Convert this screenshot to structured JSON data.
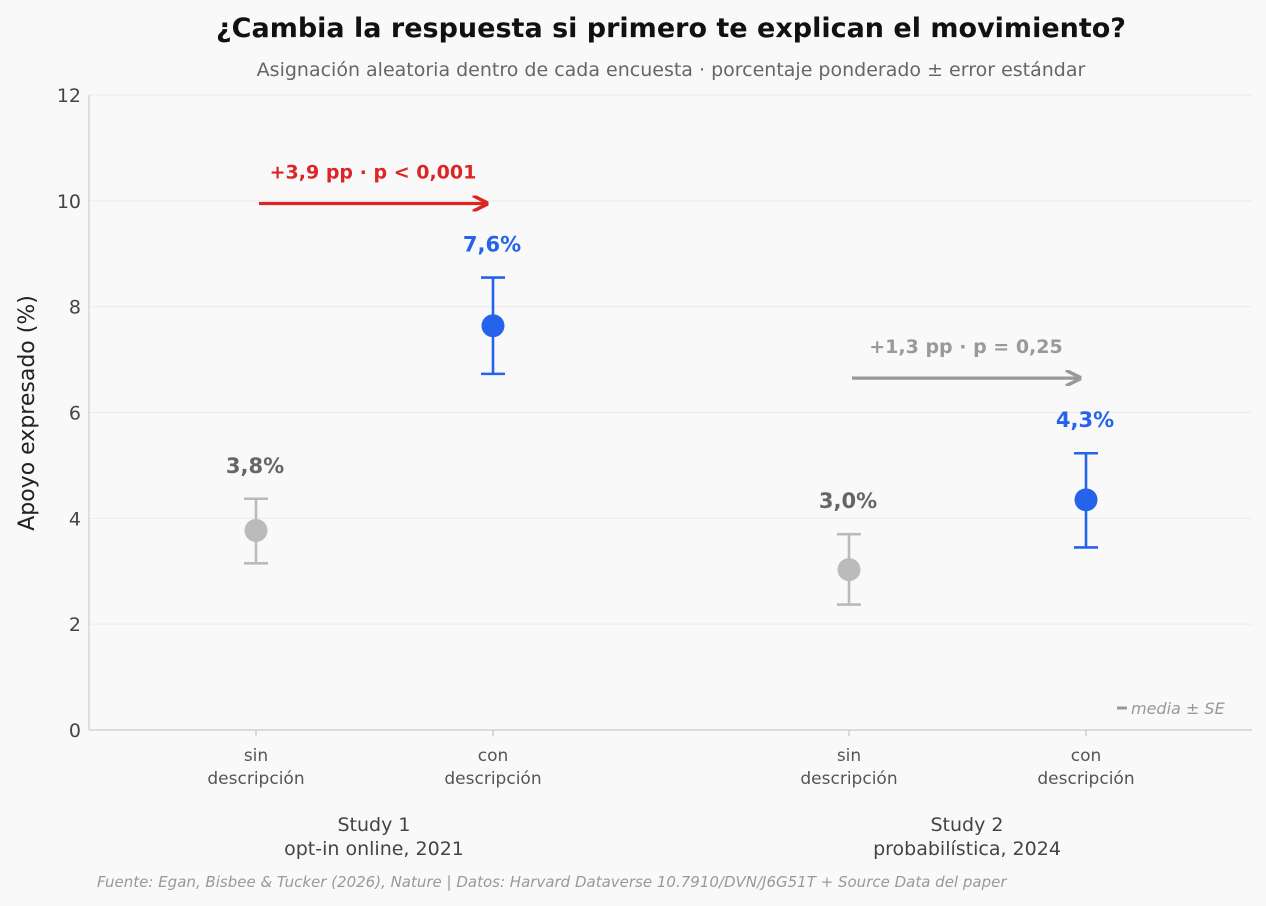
{
  "chart_data": {
    "type": "scatter",
    "title": "¿Cambia la respuesta si primero te explican el movimiento?",
    "subtitle": "Asignación aleatoria dentro de cada encuesta · porcentaje ponderado ± error estándar",
    "ylabel": "Apoyo expresado (%)",
    "ylim": [
      0,
      12
    ],
    "yticks": [
      "0",
      "2",
      "4",
      "6",
      "8",
      "10",
      "12"
    ],
    "grid": "horizontal",
    "legend_text": "media ± SE",
    "legend_position": "bottom-right",
    "colors": {
      "control": "#bbbbbb",
      "treatment": "#2563eb",
      "significant": "#dc2626",
      "nonsignificant": "#999999",
      "control_label": "#666666"
    },
    "groups": [
      {
        "study_line1": "Study 1",
        "study_line2": "opt-in online, 2021",
        "points": [
          {
            "condition": "control",
            "tick_line1": "sin",
            "tick_line2": "descripción",
            "value": 3.77,
            "se_low": 3.15,
            "se_high": 4.37,
            "label": "3,8%"
          },
          {
            "condition": "treatment",
            "tick_line1": "con",
            "tick_line2": "descripción",
            "value": 7.64,
            "se_low": 6.73,
            "se_high": 8.55,
            "label": "7,6%"
          }
        ],
        "annotation": {
          "text": "+3,9 pp · p < 0,001",
          "y": 9.95,
          "significant": true
        }
      },
      {
        "study_line1": "Study 2",
        "study_line2": "probabilística, 2024",
        "points": [
          {
            "condition": "control",
            "tick_line1": "sin",
            "tick_line2": "descripción",
            "value": 3.03,
            "se_low": 2.37,
            "se_high": 3.7,
            "label": "3,0%"
          },
          {
            "condition": "treatment",
            "tick_line1": "con",
            "tick_line2": "descripción",
            "value": 4.35,
            "se_low": 3.45,
            "se_high": 5.23,
            "label": "4,3%"
          }
        ],
        "annotation": {
          "text": "+1,3 pp · p = 0,25",
          "y": 6.65,
          "significant": false
        }
      }
    ],
    "source": "Fuente: Egan, Bisbee & Tucker (2026), Nature | Datos: Harvard Dataverse 10.7910/DVN/J6G51T + Source Data del paper"
  }
}
